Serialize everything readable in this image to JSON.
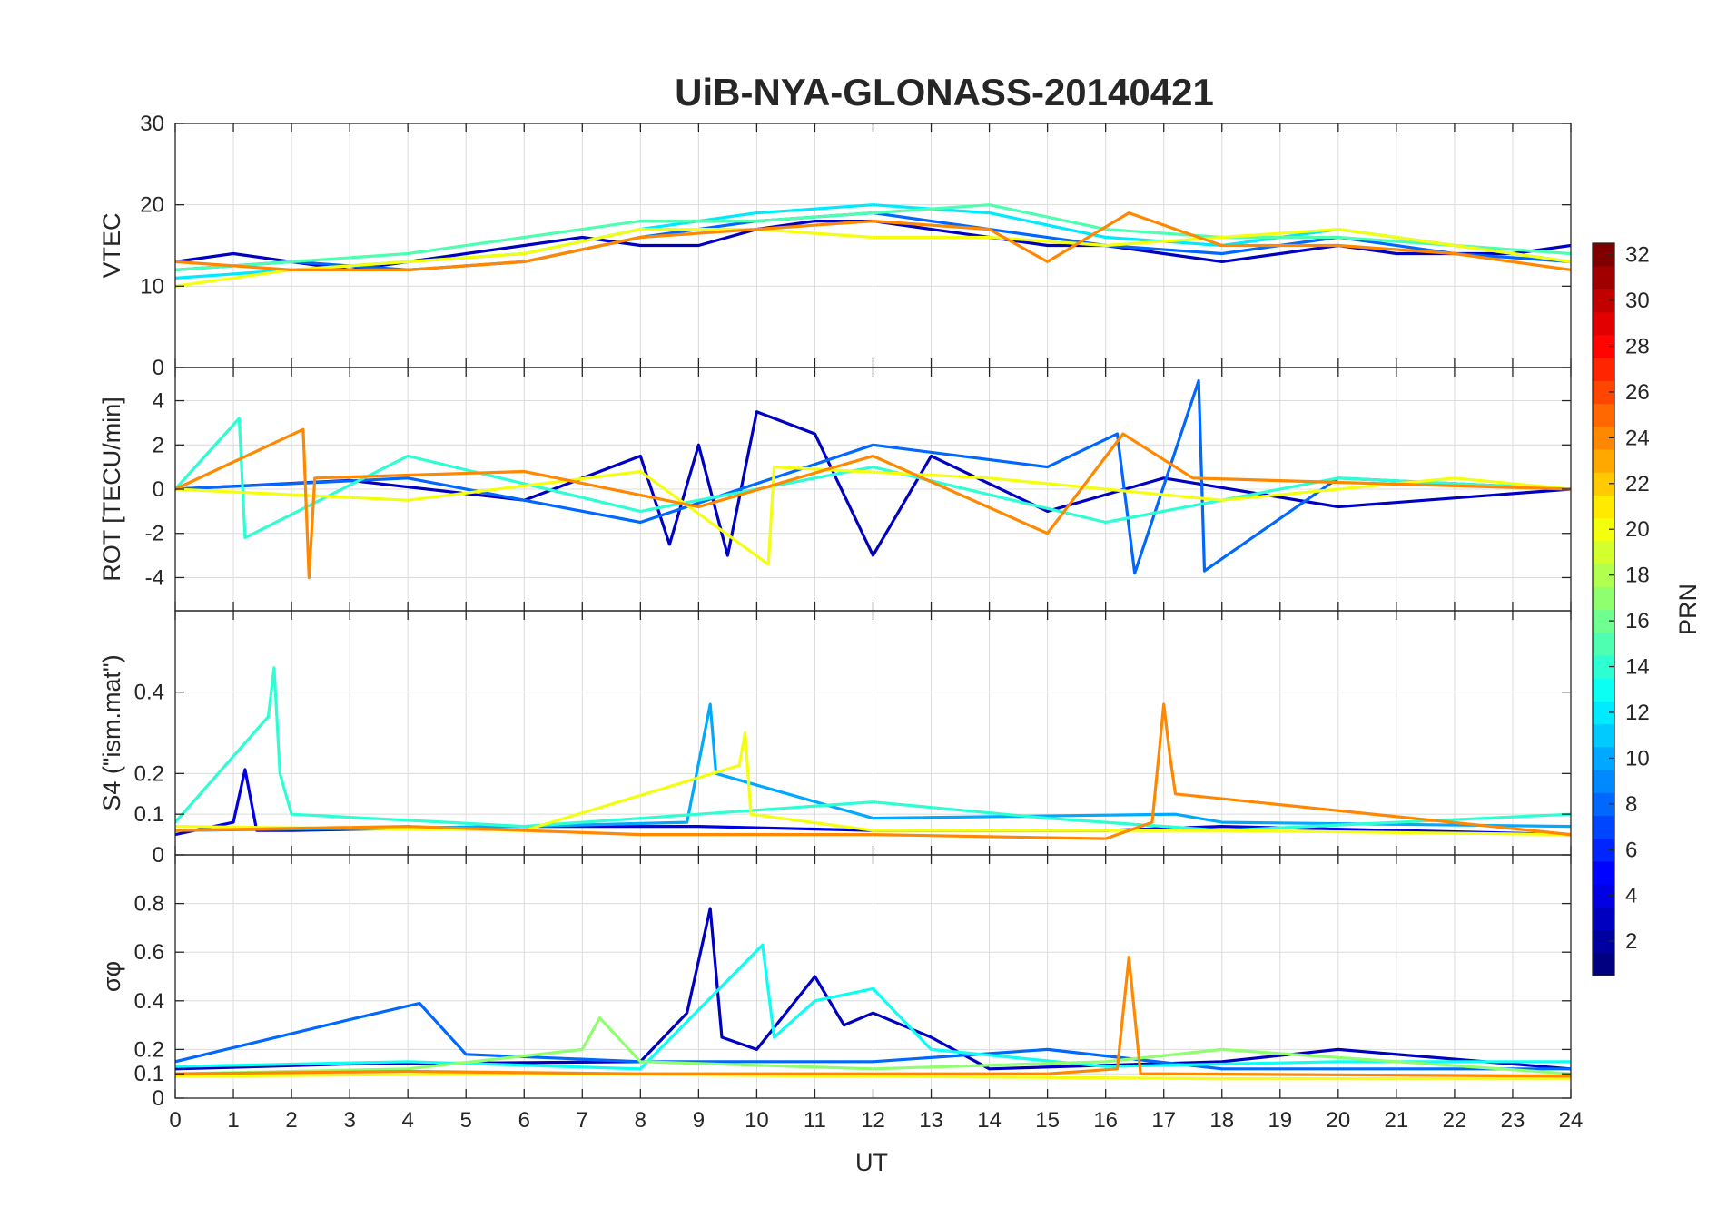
{
  "chart_data": {
    "type": "line",
    "title": "UiB-NYA-GLONASS-20140421",
    "xlabel": "UT",
    "xlim": [
      0,
      24
    ],
    "xticks": [
      "0",
      "1",
      "2",
      "3",
      "4",
      "5",
      "6",
      "7",
      "8",
      "9",
      "10",
      "11",
      "12",
      "13",
      "14",
      "15",
      "16",
      "17",
      "18",
      "19",
      "20",
      "21",
      "22",
      "23",
      "24"
    ],
    "grid": true,
    "colormap": "jet",
    "colorbar": {
      "label": "PRN",
      "range": [
        1,
        32
      ],
      "ticks": [
        "2",
        "4",
        "6",
        "8",
        "10",
        "12",
        "14",
        "16",
        "18",
        "20",
        "22",
        "24",
        "26",
        "28",
        "30",
        "32"
      ],
      "placement": "right"
    },
    "panels": [
      {
        "id": "vtec",
        "ylabel": "VTEC",
        "ylim": [
          0,
          30
        ],
        "yticks": [
          "0",
          "10",
          "20",
          "30"
        ],
        "series": [
          {
            "prn": 3,
            "x": [
              0,
              1,
              2,
              3,
              4,
              5,
              6,
              7,
              8,
              9,
              10,
              11,
              12,
              13,
              14,
              15,
              16,
              17,
              18,
              19,
              20,
              21,
              22,
              23,
              24
            ],
            "y": [
              13,
              14,
              13,
              12,
              13,
              14,
              15,
              16,
              15,
              15,
              17,
              18,
              18,
              17,
              16,
              15,
              15,
              14,
              13,
              14,
              15,
              14,
              14,
              14,
              15
            ]
          },
          {
            "prn": 8,
            "x": [
              0,
              2,
              4,
              6,
              8,
              10,
              12,
              14,
              16,
              18,
              20,
              22,
              24
            ],
            "y": [
              12,
              13,
              12,
              13,
              16,
              18,
              19,
              17,
              15,
              14,
              16,
              14,
              13
            ]
          },
          {
            "prn": 12,
            "x": [
              0,
              2,
              4,
              6,
              8,
              10,
              12,
              14,
              16,
              18,
              20,
              22,
              24
            ],
            "y": [
              11,
              12,
              13,
              14,
              17,
              19,
              20,
              19,
              16,
              15,
              17,
              15,
              13
            ]
          },
          {
            "prn": 15,
            "x": [
              0,
              2,
              4,
              6,
              8,
              10,
              12,
              14,
              16,
              18,
              20,
              22,
              24
            ],
            "y": [
              12,
              13,
              14,
              16,
              18,
              18,
              19,
              20,
              17,
              16,
              16,
              15,
              14
            ]
          },
          {
            "prn": 20,
            "x": [
              0,
              2,
              4,
              6,
              8,
              10,
              12,
              14,
              16,
              18,
              20,
              22,
              24
            ],
            "y": [
              10,
              12,
              13,
              14,
              17,
              17,
              16,
              16,
              15,
              16,
              17,
              15,
              13
            ]
          },
          {
            "prn": 24,
            "x": [
              0,
              2,
              4,
              6,
              8,
              10,
              12,
              14,
              15,
              16.4,
              18,
              20,
              22,
              24
            ],
            "y": [
              13,
              12,
              12,
              13,
              16,
              17,
              18,
              17,
              13,
              19,
              15,
              15,
              14,
              12
            ]
          }
        ]
      },
      {
        "id": "rot",
        "ylabel": "ROT [TECU/min]",
        "ylim": [
          -5.5,
          5.5
        ],
        "yticks": [
          "-4",
          "-2",
          "0",
          "2",
          "4"
        ],
        "series": [
          {
            "prn": 3,
            "x": [
              0,
              3,
              6,
              8,
              8.5,
              9,
              9.5,
              10,
              11,
              12,
              13,
              15,
              17,
              20,
              24
            ],
            "y": [
              0,
              0.4,
              -0.5,
              1.5,
              -2.5,
              2,
              -3,
              3.5,
              2.5,
              -3,
              1.5,
              -1,
              0.5,
              -0.8,
              0
            ]
          },
          {
            "prn": 8,
            "x": [
              0,
              4,
              8,
              12,
              15,
              16.2,
              16.5,
              17.6,
              17.7,
              20,
              24
            ],
            "y": [
              0,
              0.5,
              -1.5,
              2,
              1,
              2.5,
              -3.8,
              4.9,
              -3.7,
              0.5,
              0
            ]
          },
          {
            "prn": 14,
            "x": [
              0,
              1.1,
              1.2,
              4,
              8,
              12,
              16,
              20,
              24
            ],
            "y": [
              0,
              3.2,
              -2.2,
              1.5,
              -1,
              1,
              -1.5,
              0.5,
              0
            ]
          },
          {
            "prn": 20,
            "x": [
              0,
              4,
              8,
              10.2,
              10.3,
              14,
              18,
              22,
              24
            ],
            "y": [
              0,
              -0.5,
              0.8,
              -3.4,
              1,
              0.5,
              -0.5,
              0.5,
              0
            ]
          },
          {
            "prn": 24,
            "x": [
              0,
              2.2,
              2.3,
              2.4,
              6,
              9,
              12,
              15,
              16.3,
              17.5,
              24
            ],
            "y": [
              0,
              2.7,
              -4,
              0.5,
              0.8,
              -0.8,
              1.5,
              -2,
              2.5,
              0.5,
              0
            ]
          }
        ]
      },
      {
        "id": "s4",
        "ylabel": "S4 (\"ism.mat\")",
        "ylim": [
          0,
          0.6
        ],
        "yticks": [
          "0",
          "0.1",
          "0.2",
          "0.4"
        ],
        "series": [
          {
            "prn": 4,
            "x": [
              0,
              1,
              1.2,
              1.4,
              2,
              6,
              9,
              12,
              16,
              18,
              24
            ],
            "y": [
              0.05,
              0.08,
              0.21,
              0.06,
              0.06,
              0.07,
              0.07,
              0.06,
              0.06,
              0.07,
              0.05
            ]
          },
          {
            "prn": 10,
            "x": [
              0,
              6,
              8.8,
              9.2,
              9.3,
              12,
              17.2,
              18,
              24
            ],
            "y": [
              0.06,
              0.07,
              0.08,
              0.37,
              0.2,
              0.09,
              0.1,
              0.08,
              0.07
            ]
          },
          {
            "prn": 14,
            "x": [
              0,
              1.6,
              1.7,
              1.8,
              2,
              6,
              12,
              15,
              18,
              24
            ],
            "y": [
              0.08,
              0.34,
              0.46,
              0.2,
              0.1,
              0.07,
              0.13,
              0.09,
              0.06,
              0.1
            ]
          },
          {
            "prn": 20,
            "x": [
              0,
              6,
              9.7,
              9.8,
              9.9,
              12,
              18,
              24
            ],
            "y": [
              0.07,
              0.06,
              0.22,
              0.3,
              0.1,
              0.06,
              0.06,
              0.05
            ]
          },
          {
            "prn": 24,
            "x": [
              0,
              4,
              8,
              12,
              16,
              16.8,
              17.0,
              17.1,
              17.2,
              24
            ],
            "y": [
              0.06,
              0.07,
              0.05,
              0.05,
              0.04,
              0.08,
              0.37,
              0.25,
              0.15,
              0.05
            ]
          }
        ]
      },
      {
        "id": "sigma",
        "ylabel": "σφ",
        "ylim": [
          0,
          1
        ],
        "yticks": [
          "0",
          "0.1",
          "0.2",
          "0.4",
          "0.6",
          "0.8"
        ],
        "series": [
          {
            "prn": 3,
            "x": [
              0,
              3,
              8,
              8.8,
              9.2,
              9.4,
              10,
              11,
              11.5,
              12,
              13,
              14,
              18,
              20,
              24
            ],
            "y": [
              0.12,
              0.14,
              0.15,
              0.35,
              0.78,
              0.25,
              0.2,
              0.5,
              0.3,
              0.35,
              0.25,
              0.12,
              0.15,
              0.2,
              0.12
            ]
          },
          {
            "prn": 8,
            "x": [
              0,
              3.3,
              4.2,
              5,
              8,
              12,
              15,
              18,
              24
            ],
            "y": [
              0.15,
              0.34,
              0.39,
              0.18,
              0.15,
              0.15,
              0.2,
              0.12,
              0.12
            ]
          },
          {
            "prn": 13,
            "x": [
              0,
              4,
              8,
              10.1,
              10.3,
              11,
              12,
              13,
              16,
              20,
              24
            ],
            "y": [
              0.13,
              0.15,
              0.12,
              0.63,
              0.25,
              0.4,
              0.45,
              0.2,
              0.13,
              0.15,
              0.15
            ]
          },
          {
            "prn": 17,
            "x": [
              0,
              4,
              7,
              7.3,
              8,
              12,
              16,
              18,
              24
            ],
            "y": [
              0.1,
              0.12,
              0.2,
              0.33,
              0.15,
              0.12,
              0.15,
              0.2,
              0.1
            ]
          },
          {
            "prn": 20,
            "x": [
              0,
              6,
              12,
              18,
              24
            ],
            "y": [
              0.09,
              0.1,
              0.09,
              0.08,
              0.08
            ]
          },
          {
            "prn": 24,
            "x": [
              0,
              4,
              8,
              12,
              15,
              16.2,
              16.4,
              16.6,
              17,
              24
            ],
            "y": [
              0.1,
              0.11,
              0.1,
              0.1,
              0.1,
              0.12,
              0.58,
              0.1,
              0.1,
              0.09
            ]
          }
        ]
      }
    ]
  }
}
